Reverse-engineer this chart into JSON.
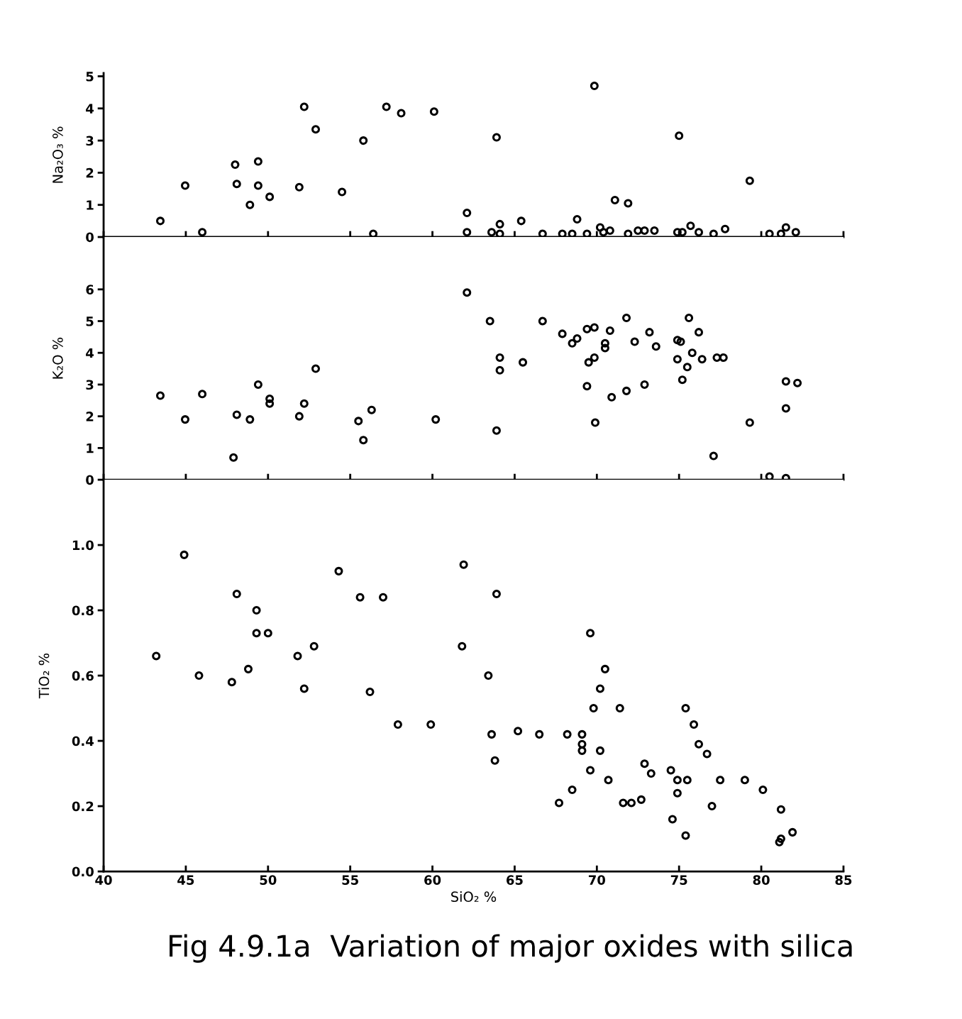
{
  "chart_data": [
    {
      "type": "scatter",
      "ylabel": "Na₂O₃ %",
      "xlim": [
        40,
        85
      ],
      "ylim": [
        0,
        5.1
      ],
      "xticks": [
        40,
        45,
        50,
        55,
        60,
        65,
        70,
        75,
        80,
        85
      ],
      "yticks": [
        0,
        1,
        2,
        3,
        4,
        5
      ],
      "tick_labels": "y",
      "marker": "circle",
      "grid": false,
      "legend": false,
      "series": [
        {
          "color": "#000000",
          "x": [
            43.45,
            44.96,
            46.0,
            48.0,
            48.1,
            48.9,
            49.4,
            49.4,
            50.1,
            51.9,
            52.2,
            52.9,
            54.5,
            55.8,
            56.4,
            57.2,
            58.1,
            60.1,
            62.1,
            62.1,
            63.9,
            63.6,
            64.1,
            64.1,
            65.4,
            66.7,
            67.9,
            68.5,
            68.8,
            69.4,
            69.85,
            70.2,
            70.4,
            70.8,
            71.1,
            71.9,
            71.9,
            72.5,
            72.9,
            73.5,
            74.9,
            75.0,
            75.2,
            75.7,
            76.2,
            77.1,
            77.8,
            79.3,
            80.5,
            81.2,
            81.5,
            82.1
          ],
          "values": [
            0.5,
            1.6,
            0.15,
            2.25,
            1.65,
            1.0,
            2.35,
            1.6,
            1.25,
            1.55,
            4.05,
            3.35,
            1.4,
            3.0,
            0.1,
            4.05,
            3.85,
            3.9,
            0.75,
            0.15,
            3.1,
            0.15,
            0.1,
            0.4,
            0.5,
            0.1,
            0.1,
            0.1,
            0.55,
            0.1,
            4.7,
            0.3,
            0.15,
            0.2,
            1.15,
            1.05,
            0.1,
            0.2,
            0.2,
            0.2,
            0.15,
            3.15,
            0.15,
            0.35,
            0.15,
            0.1,
            0.25,
            1.75,
            0.1,
            0.1,
            0.3,
            0.15
          ]
        }
      ]
    },
    {
      "type": "scatter",
      "ylabel": "K₂O %",
      "xlim": [
        40,
        85
      ],
      "ylim": [
        0,
        7.65
      ],
      "xticks": [
        40,
        45,
        50,
        55,
        60,
        65,
        70,
        75,
        80,
        85
      ],
      "yticks": [
        0,
        1,
        2,
        3,
        4,
        5,
        6
      ],
      "tick_labels": "y",
      "marker": "circle",
      "grid": false,
      "legend": false,
      "series": [
        {
          "color": "#000000",
          "x": [
            43.45,
            44.96,
            46.0,
            47.9,
            48.1,
            48.9,
            49.4,
            50.1,
            50.1,
            51.9,
            52.2,
            52.9,
            55.5,
            55.8,
            56.3,
            60.2,
            62.1,
            63.5,
            63.9,
            64.1,
            64.1,
            65.5,
            66.7,
            67.9,
            68.5,
            68.8,
            69.4,
            69.4,
            69.5,
            69.85,
            69.85,
            69.9,
            70.5,
            70.5,
            70.8,
            70.9,
            71.8,
            71.8,
            72.3,
            72.9,
            73.2,
            73.6,
            74.9,
            75.1,
            74.9,
            75.2,
            75.5,
            75.6,
            75.8,
            76.2,
            76.4,
            77.3,
            77.7,
            77.1,
            79.3,
            80.5,
            81.5,
            81.5,
            81.5,
            82.2
          ],
          "values": [
            2.65,
            1.9,
            2.7,
            0.7,
            2.05,
            1.9,
            3.0,
            2.55,
            2.4,
            2.0,
            2.4,
            3.5,
            1.85,
            1.25,
            2.2,
            1.9,
            5.9,
            5.0,
            1.55,
            3.85,
            3.45,
            3.7,
            5.0,
            4.6,
            4.3,
            4.45,
            4.75,
            2.95,
            3.7,
            4.8,
            3.85,
            1.8,
            4.3,
            4.15,
            4.7,
            2.6,
            5.1,
            2.8,
            4.35,
            3.0,
            4.65,
            4.2,
            4.4,
            4.35,
            3.8,
            3.15,
            3.55,
            5.1,
            4.0,
            4.65,
            3.8,
            3.85,
            3.85,
            0.75,
            1.8,
            0.1,
            0.05,
            2.25,
            3.1,
            3.05
          ]
        }
      ]
    },
    {
      "type": "scatter",
      "title": "Fig 4.9.1a  Variation of major oxides with silica",
      "xlabel": "SiO₂ %",
      "ylabel": "TiO₂ %",
      "xlim": [
        40,
        85
      ],
      "ylim": [
        0,
        1.2
      ],
      "xticks": [
        40,
        45,
        50,
        55,
        60,
        65,
        70,
        75,
        80,
        85
      ],
      "yticks": [
        {
          "value": 0,
          "label": "0.0"
        },
        {
          "value": 0.2,
          "label": "0.2"
        },
        {
          "value": 0.4,
          "label": "0.4"
        },
        {
          "value": 0.6,
          "label": "0.6"
        },
        {
          "value": 0.8,
          "label": "0.8"
        },
        {
          "value": 1.0,
          "label": "1.0"
        }
      ],
      "marker": "circle",
      "grid": false,
      "legend": false,
      "series": [
        {
          "color": "#000000",
          "x": [
            43.2,
            44.9,
            45.8,
            47.8,
            48.1,
            48.8,
            49.3,
            49.3,
            50.0,
            51.8,
            52.2,
            52.8,
            54.3,
            55.6,
            56.2,
            57.0,
            57.9,
            59.9,
            61.9,
            61.8,
            63.4,
            63.6,
            63.9,
            63.8,
            65.2,
            66.5,
            67.7,
            68.2,
            68.5,
            69.1,
            69.1,
            69.1,
            69.6,
            69.6,
            69.8,
            70.2,
            70.2,
            70.5,
            70.7,
            71.4,
            71.6,
            72.1,
            72.7,
            72.9,
            73.3,
            74.5,
            74.6,
            74.9,
            74.9,
            75.4,
            75.5,
            75.4,
            75.9,
            76.2,
            76.7,
            77.0,
            77.5,
            79.0,
            80.1,
            81.2,
            81.2,
            81.1,
            81.9
          ],
          "values": [
            0.66,
            0.97,
            0.6,
            0.58,
            0.85,
            0.62,
            0.8,
            0.73,
            0.73,
            0.66,
            0.56,
            0.69,
            0.92,
            0.84,
            0.55,
            0.84,
            0.45,
            0.45,
            0.94,
            0.69,
            0.6,
            0.42,
            0.85,
            0.34,
            0.43,
            0.42,
            0.21,
            0.42,
            0.25,
            0.42,
            0.39,
            0.37,
            0.31,
            0.73,
            0.5,
            0.56,
            0.37,
            0.62,
            0.28,
            0.5,
            0.21,
            0.21,
            0.22,
            0.33,
            0.3,
            0.31,
            0.16,
            0.24,
            0.28,
            0.5,
            0.28,
            0.11,
            0.45,
            0.39,
            0.36,
            0.2,
            0.28,
            0.28,
            0.25,
            0.19,
            0.1,
            0.09,
            0.12
          ]
        }
      ]
    }
  ]
}
